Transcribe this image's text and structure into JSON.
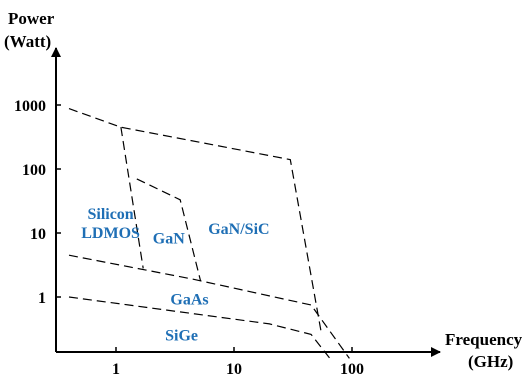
{
  "chart_data": {
    "type": "area",
    "x_scale": "log",
    "y_scale": "log",
    "y_axis_title": [
      "Power",
      "(Watt)"
    ],
    "x_axis_title": [
      "Frequency",
      "(GHz)"
    ],
    "x_ticks": [
      {
        "value": 1,
        "label": "1"
      },
      {
        "value": 10,
        "label": "10"
      },
      {
        "value": 100,
        "label": "100"
      }
    ],
    "y_ticks": [
      {
        "value": 1,
        "label": "1"
      },
      {
        "value": 10,
        "label": "10"
      },
      {
        "value": 100,
        "label": "100"
      },
      {
        "value": 1000,
        "label": "1000"
      }
    ],
    "boundaries": [
      {
        "id": "silicon-upper",
        "points": [
          [
            0.4,
            880
          ],
          [
            1.1,
            450
          ],
          [
            30,
            140
          ],
          [
            55,
            0.27
          ]
        ]
      },
      {
        "id": "silicon-gan-divider",
        "points": [
          [
            1.1,
            450
          ],
          [
            1.7,
            2.8
          ]
        ]
      },
      {
        "id": "gan-region",
        "points": [
          [
            1.5,
            70
          ],
          [
            3.5,
            33
          ],
          [
            5.2,
            1.8
          ]
        ]
      },
      {
        "id": "gaas-upper",
        "points": [
          [
            0.4,
            4.5
          ],
          [
            4.5,
            1.9
          ],
          [
            45,
            0.75
          ],
          [
            95,
            0.11
          ]
        ]
      },
      {
        "id": "sige-upper",
        "points": [
          [
            0.4,
            1.0
          ],
          [
            20,
            0.38
          ],
          [
            45,
            0.26
          ],
          [
            65,
            0.11
          ]
        ]
      }
    ],
    "regions": [
      {
        "lines": [
          "Silicon",
          "LDMOS"
        ],
        "x": 0.9,
        "y": 14
      },
      {
        "lines": [
          "GaN"
        ],
        "x": 2.8,
        "y": 8.2
      },
      {
        "lines": [
          "GaN/SiC"
        ],
        "x": 11,
        "y": 11.5
      },
      {
        "lines": [
          "GaAs"
        ],
        "x": 4.2,
        "y": 0.92
      },
      {
        "lines": [
          "SiGe"
        ],
        "x": 3.6,
        "y": 0.25
      }
    ]
  }
}
